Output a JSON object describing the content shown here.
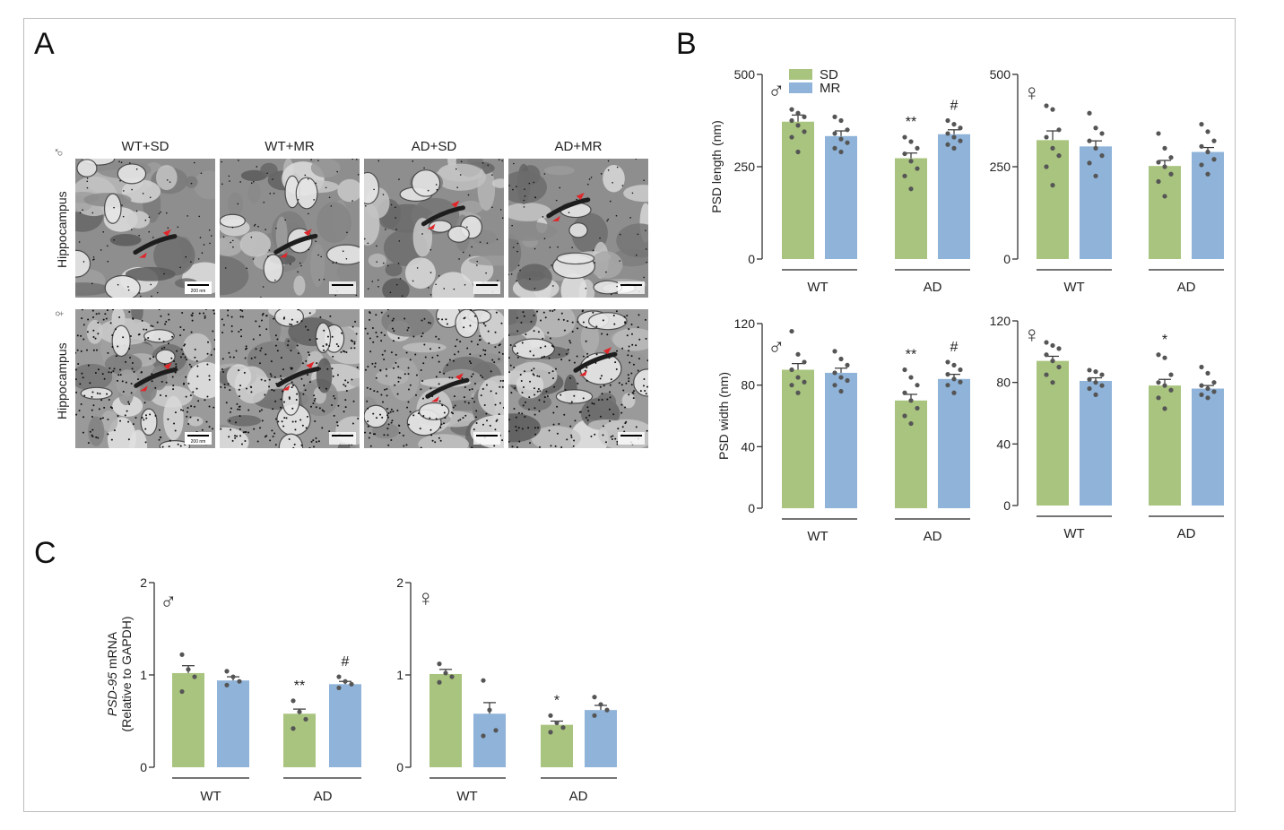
{
  "panels": {
    "a": "A",
    "b": "B",
    "c": "C"
  },
  "panel_a": {
    "columns": [
      "WT+SD",
      "WT+MR",
      "AD+SD",
      "AD+MR"
    ],
    "row_label": "Hippocampus",
    "rows": [
      {
        "sex_symbol": "♂",
        "images": [
          "micrograph-wt-sd-male",
          "micrograph-wt-mr-male",
          "micrograph-ad-sd-male",
          "micrograph-ad-mr-male"
        ]
      },
      {
        "sex_symbol": "♀",
        "images": [
          "micrograph-wt-sd-female",
          "micrograph-wt-mr-female",
          "micrograph-ad-sd-female",
          "micrograph-ad-mr-female"
        ]
      }
    ],
    "scale_bar": "200 nm"
  },
  "colors": {
    "SD": "#a9c47f",
    "MR": "#8fb3d9",
    "dot": "#555555",
    "axis": "#333333"
  },
  "chart_data": [
    {
      "id": "b-male-length",
      "type": "bar",
      "sex_symbol": "♂",
      "ylabel": "PSD length (nm)",
      "ylim": [
        0,
        500
      ],
      "yticks": [
        0,
        250,
        500
      ],
      "groups": [
        "WT",
        "AD"
      ],
      "legend": [
        "SD",
        "MR"
      ],
      "series": [
        {
          "name": "SD",
          "values": [
            372,
            273
          ],
          "sem": [
            18,
            14
          ],
          "dots": [
            [
              405,
              395,
              385,
              375,
              362,
              345,
              330,
              290
            ],
            [
              330,
              318,
              300,
              285,
              265,
              245,
              225,
              190
            ]
          ]
        },
        {
          "name": "MR",
          "values": [
            333,
            338
          ],
          "sem": [
            14,
            12
          ],
          "dots": [
            [
              385,
              375,
              350,
              340,
              325,
              315,
              300,
              290
            ],
            [
              375,
              365,
              355,
              340,
              330,
              320,
              310,
              300
            ]
          ]
        }
      ],
      "annotations": [
        [
          "",
          ""
        ],
        [
          "**",
          "#"
        ]
      ]
    },
    {
      "id": "b-female-length",
      "type": "bar",
      "sex_symbol": "♀",
      "ylabel": "",
      "ylim": [
        0,
        500
      ],
      "yticks": [
        0,
        250,
        500
      ],
      "groups": [
        "WT",
        "AD"
      ],
      "series": [
        {
          "name": "SD",
          "values": [
            322,
            252
          ],
          "sem": [
            25,
            15
          ],
          "dots": [
            [
              415,
              405,
              350,
              330,
              300,
              280,
              250,
              200
            ],
            [
              340,
              300,
              275,
              262,
              250,
              230,
              210,
              170
            ]
          ]
        },
        {
          "name": "MR",
          "values": [
            305,
            290
          ],
          "sem": [
            15,
            12
          ],
          "dots": [
            [
              395,
              355,
              340,
              320,
              300,
              280,
              260,
              225
            ],
            [
              365,
              345,
              320,
              305,
              290,
              270,
              255,
              230
            ]
          ]
        }
      ],
      "annotations": [
        [
          "",
          ""
        ],
        [
          "",
          ""
        ]
      ]
    },
    {
      "id": "b-male-width",
      "type": "bar",
      "sex_symbol": "♂",
      "ylabel": "PSD width (nm)",
      "ylim": [
        0,
        120
      ],
      "yticks": [
        0,
        40,
        80,
        120
      ],
      "groups": [
        "WT",
        "AD"
      ],
      "series": [
        {
          "name": "SD",
          "values": [
            90,
            70
          ],
          "sem": [
            4,
            4
          ],
          "dots": [
            [
              115,
              100,
              95,
              90,
              85,
              82,
              80,
              75
            ],
            [
              90,
              85,
              80,
              75,
              70,
              65,
              60,
              55
            ]
          ]
        },
        {
          "name": "MR",
          "values": [
            88,
            84
          ],
          "sem": [
            3,
            3
          ],
          "dots": [
            [
              102,
              97,
              93,
              88,
              85,
              83,
              80,
              76
            ],
            [
              95,
              93,
              90,
              87,
              84,
              82,
              80,
              75
            ]
          ]
        }
      ],
      "annotations": [
        [
          "",
          ""
        ],
        [
          "**",
          "#"
        ]
      ]
    },
    {
      "id": "b-female-width",
      "type": "bar",
      "sex_symbol": "♀",
      "ylabel": "",
      "ylim": [
        0,
        120
      ],
      "yticks": [
        0,
        40,
        80,
        120
      ],
      "groups": [
        "WT",
        "AD"
      ],
      "series": [
        {
          "name": "SD",
          "values": [
            94,
            78
          ],
          "sem": [
            3,
            4
          ],
          "dots": [
            [
              106,
              104,
              102,
              98,
              94,
              90,
              85,
              80
            ],
            [
              98,
              96,
              85,
              80,
              78,
              75,
              70,
              63
            ]
          ]
        },
        {
          "name": "MR",
          "values": [
            81,
            76
          ],
          "sem": [
            2,
            2
          ],
          "dots": [
            [
              88,
              87,
              85,
              82,
              80,
              78,
              76,
              72
            ],
            [
              90,
              86,
              80,
              78,
              76,
              74,
              72,
              70
            ]
          ]
        }
      ],
      "annotations": [
        [
          "",
          ""
        ],
        [
          "*",
          ""
        ]
      ]
    },
    {
      "id": "c-male-psd95",
      "type": "bar",
      "sex_symbol": "♂",
      "ylabel_italic": "PSD-95",
      "ylabel": " mRNA",
      "ylabel2": "(Relative to GAPDH)",
      "ylim": [
        0,
        2
      ],
      "yticks": [
        0,
        1,
        2
      ],
      "groups": [
        "WT",
        "AD"
      ],
      "series": [
        {
          "name": "SD",
          "values": [
            1.02,
            0.58
          ],
          "sem": [
            0.08,
            0.05
          ],
          "dots": [
            [
              1.22,
              1.06,
              0.98,
              0.82
            ],
            [
              0.72,
              0.6,
              0.52,
              0.42
            ]
          ]
        },
        {
          "name": "MR",
          "values": [
            0.94,
            0.9
          ],
          "sem": [
            0.04,
            0.03
          ],
          "dots": [
            [
              1.04,
              0.98,
              0.93,
              0.89
            ],
            [
              0.98,
              0.93,
              0.9,
              0.86
            ]
          ]
        }
      ],
      "annotations": [
        [
          "",
          ""
        ],
        [
          "**",
          "#"
        ]
      ]
    },
    {
      "id": "c-female-psd95",
      "type": "bar",
      "sex_symbol": "♀",
      "ylabel": "",
      "ylim": [
        0,
        2
      ],
      "yticks": [
        0,
        1,
        2
      ],
      "groups": [
        "WT",
        "AD"
      ],
      "series": [
        {
          "name": "SD",
          "values": [
            1.01,
            0.46
          ],
          "sem": [
            0.05,
            0.04
          ],
          "dots": [
            [
              1.12,
              1.02,
              0.98,
              0.92
            ],
            [
              0.56,
              0.48,
              0.43,
              0.38
            ]
          ]
        },
        {
          "name": "MR",
          "values": [
            0.58,
            0.62
          ],
          "sem": [
            0.12,
            0.05
          ],
          "dots": [
            [
              0.94,
              0.62,
              0.4,
              0.34
            ],
            [
              0.76,
              0.68,
              0.62,
              0.56
            ]
          ]
        }
      ],
      "annotations": [
        [
          "",
          ""
        ],
        [
          "*",
          ""
        ]
      ]
    }
  ]
}
